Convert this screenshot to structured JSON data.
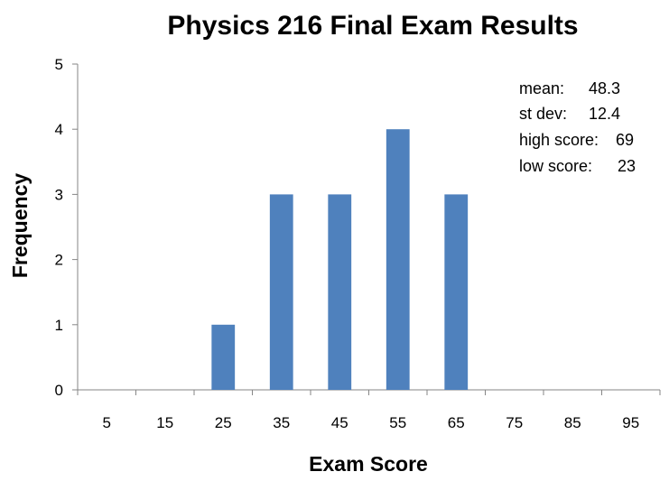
{
  "chart_data": {
    "type": "bar",
    "title": "Physics 216 Final Exam Results",
    "xlabel": "Exam Score",
    "ylabel": "Frequency",
    "categories": [
      "5",
      "15",
      "25",
      "35",
      "45",
      "55",
      "65",
      "75",
      "85",
      "95"
    ],
    "values": [
      0,
      0,
      1,
      3,
      3,
      4,
      3,
      0,
      0,
      0
    ],
    "ylim": [
      0,
      5
    ],
    "yticks": [
      "0",
      "1",
      "2",
      "3",
      "4",
      "5"
    ],
    "grid": false,
    "legend": "none",
    "bar_color": "#4F81BD",
    "annotation": {
      "lines": [
        {
          "label": "mean:",
          "value": "48.3"
        },
        {
          "label": "st dev:",
          "value": "12.4"
        },
        {
          "label": "high score:",
          "value": "69"
        },
        {
          "label": "low score:",
          "value": "23"
        }
      ]
    }
  }
}
